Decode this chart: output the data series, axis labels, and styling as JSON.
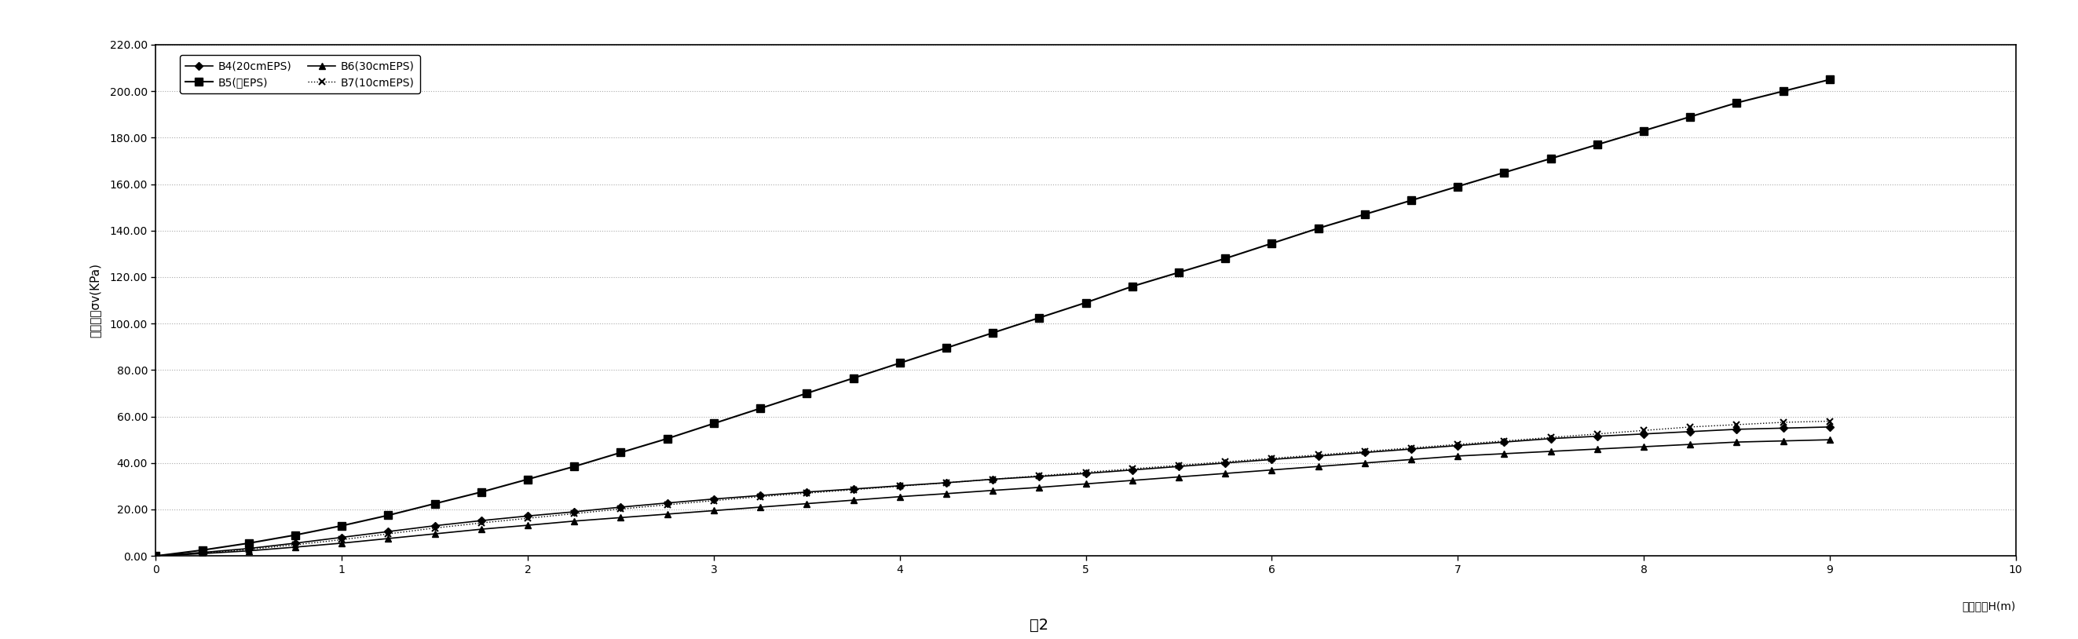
{
  "title": "图2",
  "xlabel": "填土高度H(m)",
  "ylabel_line1": "垂直压力",
  "ylabel_line2": "σv(KPa)",
  "xlim": [
    0,
    10
  ],
  "ylim": [
    0,
    220
  ],
  "ytick_values": [
    0,
    20,
    40,
    60,
    80,
    100,
    120,
    140,
    160,
    180,
    200,
    220
  ],
  "ytick_labels": [
    "0.00",
    "20.00",
    "40.00",
    "60.00",
    "80.00",
    "100.00",
    "120.00",
    "140.00",
    "160.00",
    "180.00",
    "200.00",
    "220.00"
  ],
  "xticks": [
    0,
    1,
    2,
    3,
    4,
    5,
    6,
    7,
    8,
    9,
    10
  ],
  "series": [
    {
      "label": "B4(20cmEPS)",
      "marker": "D",
      "linestyle": "-",
      "color": "#000000",
      "markersize": 5,
      "linewidth": 1.2,
      "x": [
        0,
        0.25,
        0.5,
        0.75,
        1.0,
        1.25,
        1.5,
        1.75,
        2.0,
        2.25,
        2.5,
        2.75,
        3.0,
        3.25,
        3.5,
        3.75,
        4.0,
        4.25,
        4.5,
        4.75,
        5.0,
        5.25,
        5.5,
        5.75,
        6.0,
        6.25,
        6.5,
        6.75,
        7.0,
        7.25,
        7.5,
        7.75,
        8.0,
        8.25,
        8.5,
        8.75,
        9.0
      ],
      "y": [
        0,
        1.5,
        3.2,
        5.5,
        8.0,
        10.5,
        13.0,
        15.2,
        17.2,
        19.0,
        21.0,
        22.8,
        24.5,
        26.0,
        27.5,
        28.8,
        30.2,
        31.5,
        33.0,
        34.2,
        35.5,
        37.0,
        38.5,
        40.0,
        41.5,
        43.0,
        44.5,
        46.0,
        47.5,
        49.0,
        50.5,
        51.5,
        52.5,
        53.5,
        54.5,
        55.0,
        55.5
      ]
    },
    {
      "label": "B5(无EPS)",
      "marker": "s",
      "linestyle": "-",
      "color": "#000000",
      "markersize": 7,
      "linewidth": 1.5,
      "x": [
        0,
        0.25,
        0.5,
        0.75,
        1.0,
        1.25,
        1.5,
        1.75,
        2.0,
        2.25,
        2.5,
        2.75,
        3.0,
        3.25,
        3.5,
        3.75,
        4.0,
        4.25,
        4.5,
        4.75,
        5.0,
        5.25,
        5.5,
        5.75,
        6.0,
        6.25,
        6.5,
        6.75,
        7.0,
        7.25,
        7.5,
        7.75,
        8.0,
        8.25,
        8.5,
        8.75,
        9.0
      ],
      "y": [
        0,
        2.5,
        5.5,
        9.0,
        13.0,
        17.5,
        22.5,
        27.5,
        33.0,
        38.5,
        44.5,
        50.5,
        57.0,
        63.5,
        70.0,
        76.5,
        83.0,
        89.5,
        96.0,
        102.5,
        109.0,
        116.0,
        122.0,
        128.0,
        134.5,
        141.0,
        147.0,
        153.0,
        159.0,
        165.0,
        171.0,
        177.0,
        183.0,
        189.0,
        195.0,
        200.0,
        205.0
      ]
    },
    {
      "label": "B6(30cmEPS)",
      "marker": "^",
      "linestyle": "-",
      "color": "#000000",
      "markersize": 6,
      "linewidth": 1.2,
      "x": [
        0,
        0.25,
        0.5,
        0.75,
        1.0,
        1.25,
        1.5,
        1.75,
        2.0,
        2.25,
        2.5,
        2.75,
        3.0,
        3.25,
        3.5,
        3.75,
        4.0,
        4.25,
        4.5,
        4.75,
        5.0,
        5.25,
        5.5,
        5.75,
        6.0,
        6.25,
        6.5,
        6.75,
        7.0,
        7.25,
        7.5,
        7.75,
        8.0,
        8.25,
        8.5,
        8.75,
        9.0
      ],
      "y": [
        0,
        1.0,
        2.2,
        3.8,
        5.5,
        7.5,
        9.5,
        11.5,
        13.2,
        15.0,
        16.5,
        18.0,
        19.5,
        21.0,
        22.5,
        24.0,
        25.5,
        26.8,
        28.2,
        29.5,
        31.0,
        32.5,
        34.0,
        35.5,
        37.0,
        38.5,
        40.0,
        41.5,
        43.0,
        44.0,
        45.0,
        46.0,
        47.0,
        48.0,
        49.0,
        49.5,
        50.0
      ]
    },
    {
      "label": "B7(10cmEPS)",
      "marker": "x",
      "linestyle": ":",
      "color": "#000000",
      "markersize": 6,
      "linewidth": 1.0,
      "x": [
        0,
        0.25,
        0.5,
        0.75,
        1.0,
        1.25,
        1.5,
        1.75,
        2.0,
        2.25,
        2.5,
        2.75,
        3.0,
        3.25,
        3.5,
        3.75,
        4.0,
        4.25,
        4.5,
        4.75,
        5.0,
        5.25,
        5.5,
        5.75,
        6.0,
        6.25,
        6.5,
        6.75,
        7.0,
        7.25,
        7.5,
        7.75,
        8.0,
        8.25,
        8.5,
        8.75,
        9.0
      ],
      "y": [
        0,
        1.2,
        2.8,
        4.8,
        7.0,
        9.5,
        12.0,
        14.2,
        16.2,
        18.2,
        20.2,
        22.0,
        23.8,
        25.5,
        27.0,
        28.5,
        30.0,
        31.5,
        33.0,
        34.5,
        36.0,
        37.5,
        39.0,
        40.5,
        42.0,
        43.5,
        45.0,
        46.5,
        48.0,
        49.5,
        51.0,
        52.5,
        54.0,
        55.5,
        56.5,
        57.5,
        58.0
      ]
    }
  ],
  "background_color": "#ffffff"
}
